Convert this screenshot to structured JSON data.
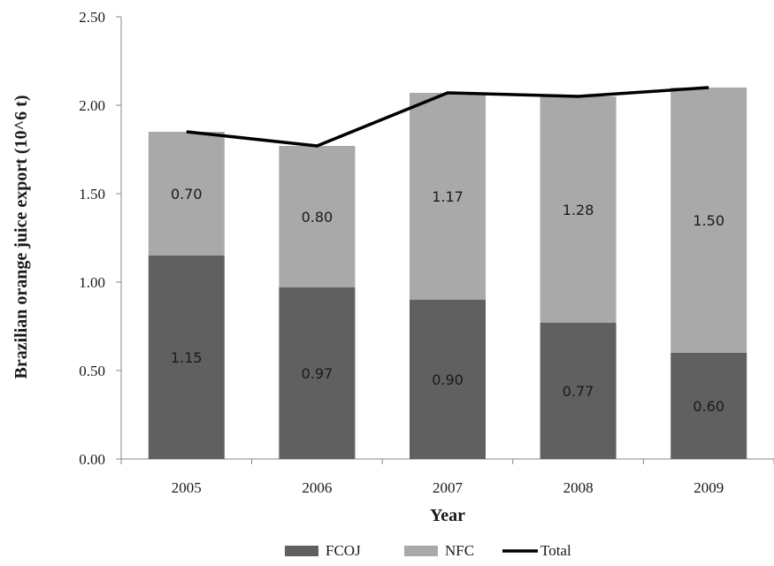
{
  "chart_data": {
    "type": "bar",
    "stacked": true,
    "xlabel": "Year",
    "ylabel": "Brazilian orange juice export (10^6 t)",
    "categories": [
      "2005",
      "2006",
      "2007",
      "2008",
      "2009"
    ],
    "ylim": [
      0,
      2.5
    ],
    "yticks": [
      "0.00",
      "0.50",
      "1.00",
      "1.50",
      "2.00",
      "2.50"
    ],
    "series": [
      {
        "name": "FCOJ",
        "type": "bar",
        "color": "#606060",
        "values": [
          1.15,
          0.97,
          0.9,
          0.77,
          0.6
        ],
        "labels": [
          "1.15",
          "0.97",
          "0.90",
          "0.77",
          "0.60"
        ]
      },
      {
        "name": "NFC",
        "type": "bar",
        "color": "#a9a9a9",
        "values": [
          0.7,
          0.8,
          1.17,
          1.28,
          1.5
        ],
        "labels": [
          "0.70",
          "0.80",
          "1.17",
          "1.28",
          "1.50"
        ]
      },
      {
        "name": "Total",
        "type": "line",
        "color": "#000000",
        "values": [
          1.85,
          1.77,
          2.07,
          2.05,
          2.1
        ]
      }
    ],
    "legend_position": "bottom",
    "grid": false
  }
}
